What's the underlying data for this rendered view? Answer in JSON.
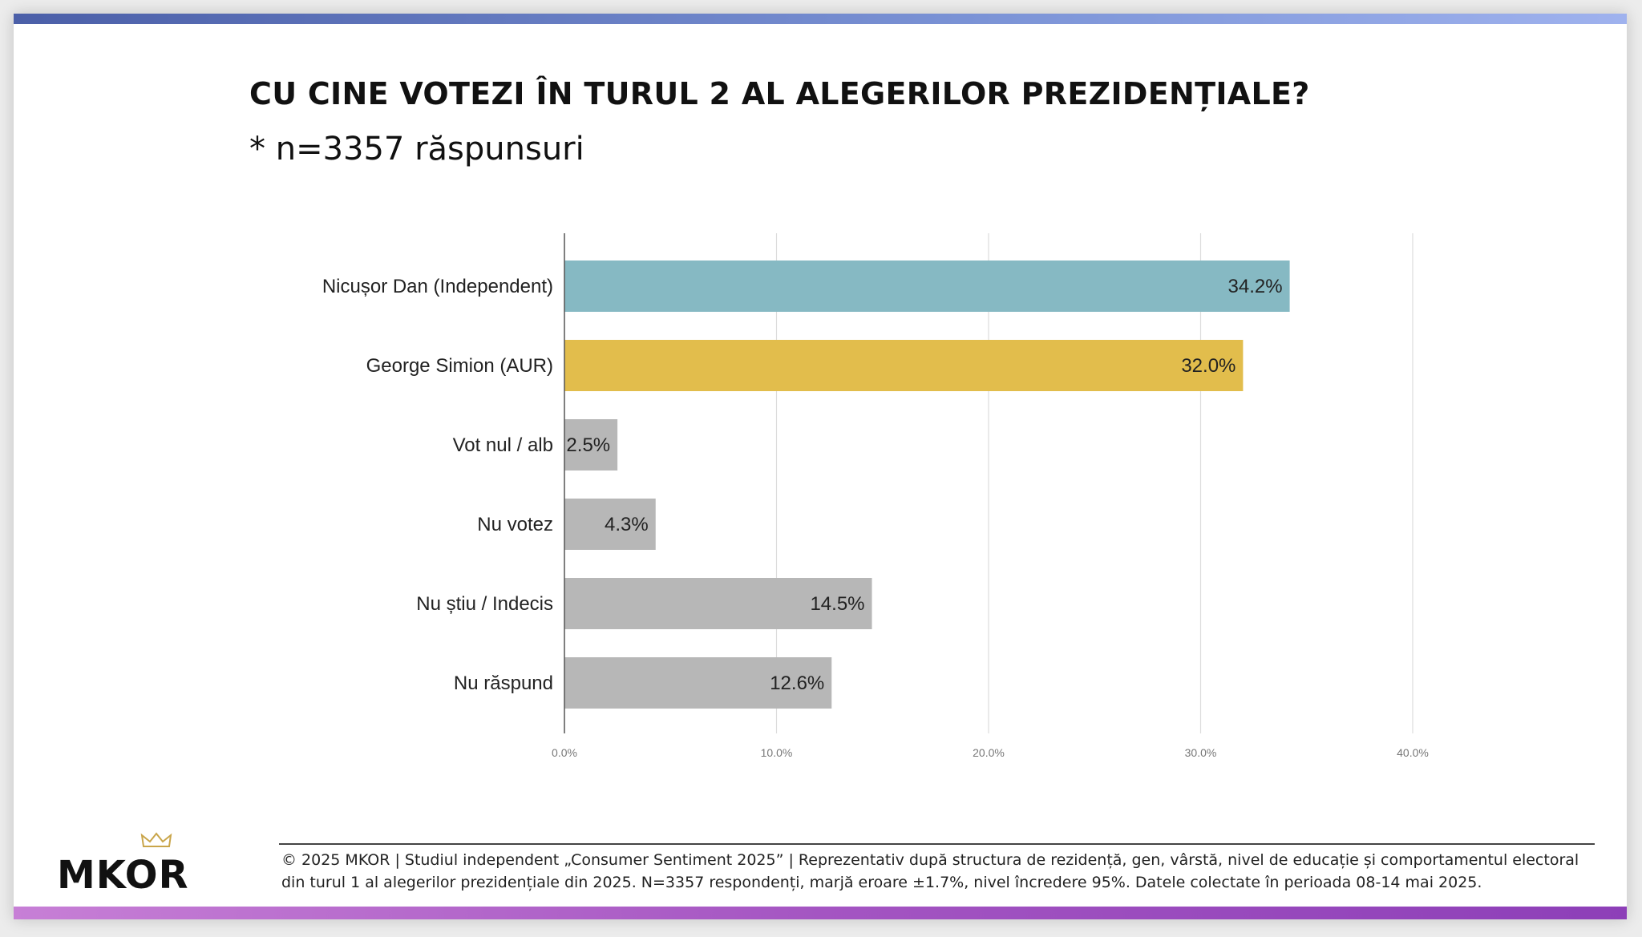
{
  "header": {
    "title": "CU CINE VOTEZI ÎN TURUL 2 AL ALEGERILOR PREZIDENȚIALE?",
    "subtitle": "* n=3357 răspunsuri"
  },
  "chart_data": {
    "type": "bar",
    "orientation": "horizontal",
    "categories": [
      "Nicușor Dan (Independent)",
      "George Simion (AUR)",
      "Vot nul / alb",
      "Nu votez",
      "Nu știu / Indecis",
      "Nu răspund"
    ],
    "values": [
      34.2,
      32.0,
      2.5,
      4.3,
      14.5,
      12.6
    ],
    "value_labels": [
      "34.2%",
      "32.0%",
      "2.5%",
      "4.3%",
      "14.5%",
      "12.6%"
    ],
    "colors": [
      "#86b9c3",
      "#e2bd4c",
      "#b7b7b7",
      "#b7b7b7",
      "#b7b7b7",
      "#b7b7b7"
    ],
    "xticks": [
      0,
      10,
      20,
      30,
      40
    ],
    "xtick_labels": [
      "0.0%",
      "10.0%",
      "20.0%",
      "30.0%",
      "40.0%"
    ],
    "xlim": [
      0,
      40
    ],
    "grid": true
  },
  "logo": {
    "text": "MKOR"
  },
  "footer": {
    "text": "© 2025 MKOR | Studiul independent „Consumer Sentiment 2025” | Reprezentativ după structura de rezidență, gen, vârstă, nivel de educație și comportamentul electoral din turul 1 al alegerilor prezidențiale din 2025. N=3357 respondenți, marjă eroare ±1.7%, nivel încredere 95%. Datele colectate în perioada 08-14 mai 2025."
  }
}
